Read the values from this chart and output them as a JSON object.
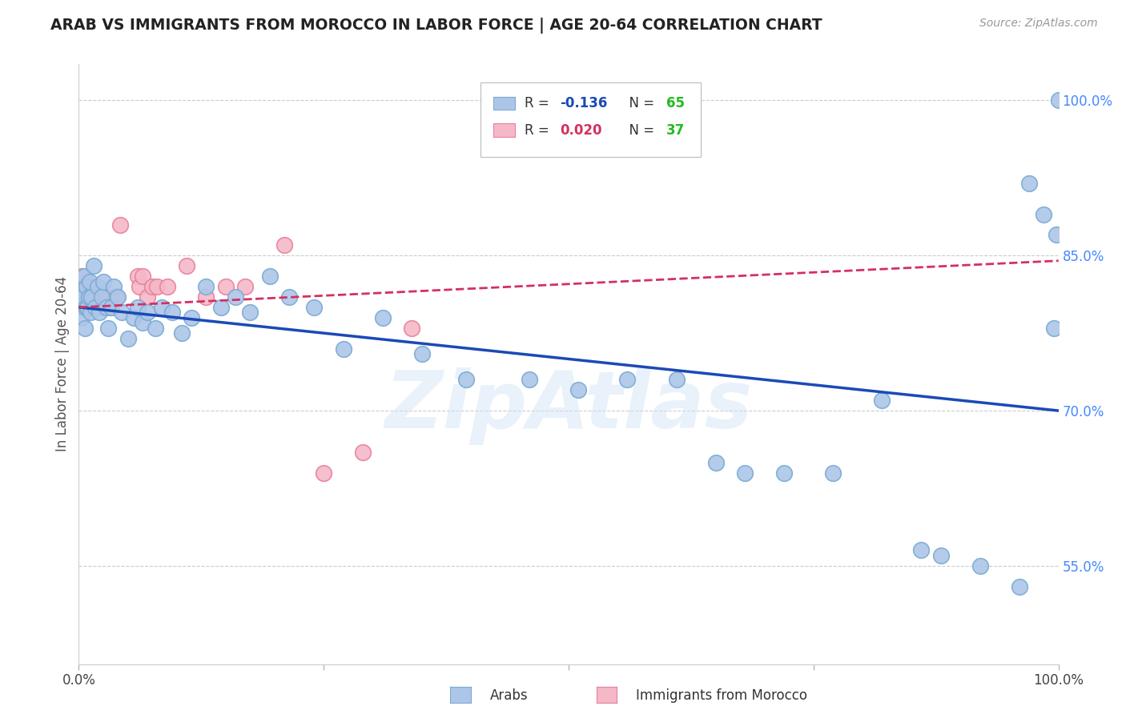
{
  "title": "ARAB VS IMMIGRANTS FROM MOROCCO IN LABOR FORCE | AGE 20-64 CORRELATION CHART",
  "source": "Source: ZipAtlas.com",
  "ylabel": "In Labor Force | Age 20-64",
  "xlim": [
    0.0,
    1.0
  ],
  "ylim": [
    0.455,
    1.035
  ],
  "yticks": [
    0.55,
    0.7,
    0.85,
    1.0
  ],
  "ytick_labels": [
    "55.0%",
    "70.0%",
    "85.0%",
    "100.0%"
  ],
  "xticks": [
    0.0,
    0.25,
    0.5,
    0.75,
    1.0
  ],
  "xtick_labels": [
    "0.0%",
    "",
    "",
    "",
    "100.0%"
  ],
  "arab_color": "#adc6e8",
  "arab_edge_color": "#7aabd4",
  "morocco_color": "#f5b8c8",
  "morocco_edge_color": "#e8809a",
  "trendline_arab_color": "#1a4ab5",
  "trendline_morocco_color": "#d43060",
  "background_color": "#ffffff",
  "grid_color": "#cccccc",
  "title_color": "#222222",
  "axis_label_color": "#555555",
  "right_tick_color": "#4488ff",
  "legend_r_arab_color": "#1a4ab5",
  "legend_r_morocco_color": "#d43060",
  "legend_n_color": "#22bb22",
  "watermark_text": "ZipAtlas",
  "arab_x": [
    0.001,
    0.001,
    0.002,
    0.003,
    0.004,
    0.005,
    0.006,
    0.007,
    0.008,
    0.009,
    0.01,
    0.011,
    0.012,
    0.013,
    0.015,
    0.017,
    0.019,
    0.021,
    0.023,
    0.025,
    0.028,
    0.03,
    0.033,
    0.036,
    0.04,
    0.044,
    0.05,
    0.056,
    0.06,
    0.065,
    0.07,
    0.078,
    0.085,
    0.095,
    0.105,
    0.115,
    0.13,
    0.145,
    0.16,
    0.175,
    0.195,
    0.215,
    0.24,
    0.27,
    0.31,
    0.35,
    0.395,
    0.46,
    0.51,
    0.56,
    0.61,
    0.65,
    0.68,
    0.72,
    0.77,
    0.82,
    0.86,
    0.88,
    0.92,
    0.96,
    0.97,
    0.985,
    0.995,
    0.998,
    1.0
  ],
  "arab_y": [
    0.82,
    0.8,
    0.815,
    0.79,
    0.81,
    0.83,
    0.78,
    0.8,
    0.82,
    0.8,
    0.81,
    0.825,
    0.795,
    0.81,
    0.84,
    0.8,
    0.82,
    0.795,
    0.81,
    0.825,
    0.8,
    0.78,
    0.8,
    0.82,
    0.81,
    0.795,
    0.77,
    0.79,
    0.8,
    0.785,
    0.795,
    0.78,
    0.8,
    0.795,
    0.775,
    0.79,
    0.82,
    0.8,
    0.81,
    0.795,
    0.83,
    0.81,
    0.8,
    0.76,
    0.79,
    0.755,
    0.73,
    0.73,
    0.72,
    0.73,
    0.73,
    0.65,
    0.64,
    0.64,
    0.64,
    0.71,
    0.565,
    0.56,
    0.55,
    0.53,
    0.92,
    0.89,
    0.78,
    0.87,
    1.0
  ],
  "morocco_x": [
    0.001,
    0.002,
    0.003,
    0.004,
    0.005,
    0.006,
    0.007,
    0.008,
    0.009,
    0.01,
    0.011,
    0.012,
    0.014,
    0.016,
    0.018,
    0.021,
    0.024,
    0.028,
    0.032,
    0.037,
    0.038,
    0.042,
    0.06,
    0.062,
    0.065,
    0.07,
    0.075,
    0.08,
    0.09,
    0.11,
    0.13,
    0.15,
    0.17,
    0.21,
    0.25,
    0.29,
    0.34
  ],
  "morocco_y": [
    0.82,
    0.8,
    0.83,
    0.8,
    0.81,
    0.82,
    0.8,
    0.81,
    0.8,
    0.82,
    0.8,
    0.81,
    0.82,
    0.8,
    0.8,
    0.81,
    0.8,
    0.81,
    0.8,
    0.81,
    0.81,
    0.88,
    0.83,
    0.82,
    0.83,
    0.81,
    0.82,
    0.82,
    0.82,
    0.84,
    0.81,
    0.82,
    0.82,
    0.86,
    0.64,
    0.66,
    0.78
  ],
  "arab_trend_x0": 0.0,
  "arab_trend_y0": 0.8,
  "arab_trend_x1": 1.0,
  "arab_trend_y1": 0.7,
  "morocco_trend_x0": 0.0,
  "morocco_trend_y0": 0.8,
  "morocco_trend_x1": 1.0,
  "morocco_trend_y1": 0.845
}
